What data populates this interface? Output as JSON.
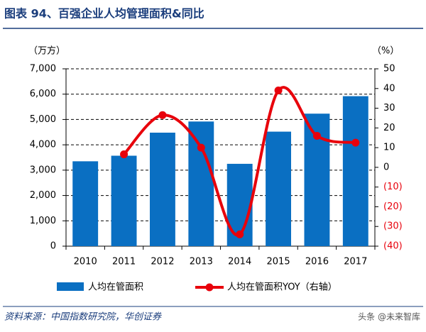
{
  "chart_data": {
    "type": "bar-line",
    "title": "图表 94、百强企业人均管理面积&同比",
    "y_label": "（万方）",
    "y2_label": "（%）",
    "source": "资料来源：中国指数研究院，华创证券",
    "watermark": "头条 @未来智库",
    "categories": [
      "2010",
      "2011",
      "2012",
      "2013",
      "2014",
      "2015",
      "2016",
      "2017"
    ],
    "series": [
      {
        "name": "人均在管面积",
        "color": "#0a6fc2",
        "values": [
          3350,
          3570,
          4480,
          4920,
          3250,
          4520,
          5230,
          5920
        ]
      },
      {
        "name": "人均在管面积YOY（右轴）",
        "color": "#e8000b",
        "axis": "y2",
        "values": [
          null,
          6.6,
          26.5,
          10,
          -34,
          39,
          16,
          12.5
        ]
      }
    ],
    "ylim": [
      0,
      7000
    ],
    "yticks": [
      0,
      {
        "value": 1000,
        "label": "1,000"
      },
      {
        "value": 2000,
        "label": "2,000"
      },
      {
        "value": 3000,
        "label": "3,000"
      },
      {
        "value": 4000,
        "label": "4,000"
      },
      {
        "value": 5000,
        "label": "5,000"
      },
      {
        "value": 6000,
        "label": "6,000"
      },
      {
        "value": 7000,
        "label": "7,000"
      }
    ],
    "y2lim": [
      -40,
      50
    ],
    "y2ticks": [
      {
        "value": -40,
        "label": "(40)"
      },
      {
        "value": -30,
        "label": "(30)"
      },
      {
        "value": -20,
        "label": "(20)"
      },
      {
        "value": -10,
        "label": "(10)"
      },
      0,
      10,
      20,
      30,
      40,
      50
    ],
    "y2_negative_color": "#e8000b",
    "grid": true
  }
}
